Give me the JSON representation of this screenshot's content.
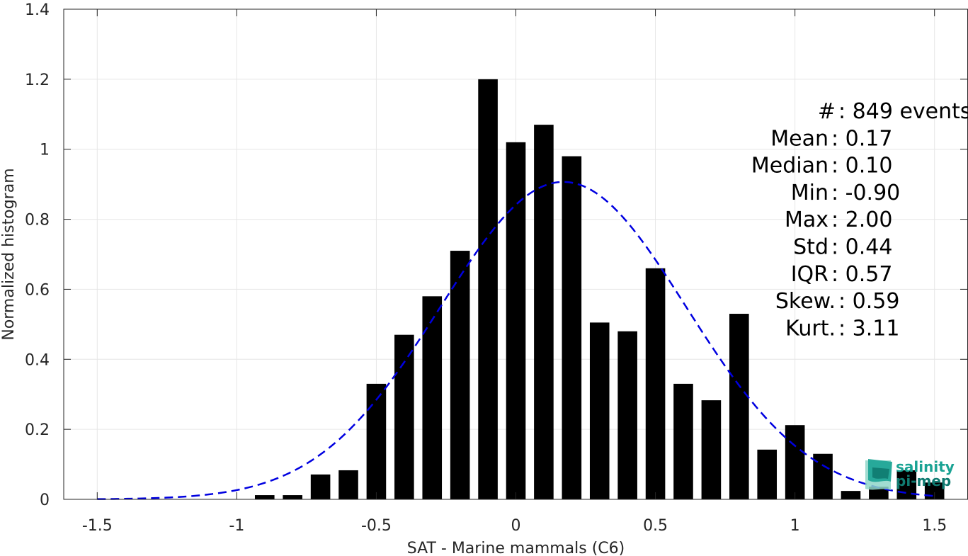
{
  "chart_data": {
    "type": "bar",
    "xlabel": "SAT - Marine mammals (C6)",
    "ylabel": "Normalized histogram",
    "xlim": [
      -1.62,
      1.62
    ],
    "ylim": [
      0,
      1.4
    ],
    "xticks": [
      -1.5,
      -1,
      -0.5,
      0,
      0.5,
      1,
      1.5
    ],
    "xtick_labels": [
      "-1.5",
      "-1",
      "-0.5",
      "0",
      "0.5",
      "1",
      "1.5"
    ],
    "yticks": [
      0,
      0.2,
      0.4,
      0.6,
      0.8,
      1,
      1.2,
      1.4
    ],
    "ytick_labels": [
      "0",
      "0.2",
      "0.4",
      "0.6",
      "0.8",
      "1",
      "1.2",
      "1.4"
    ],
    "grid": true,
    "bin_width": 0.1,
    "bar_width": 0.07,
    "bar_color": "#000000",
    "x": [
      -0.9,
      -0.8,
      -0.7,
      -0.6,
      -0.5,
      -0.4,
      -0.3,
      -0.2,
      -0.1,
      0.0,
      0.1,
      0.2,
      0.3,
      0.4,
      0.5,
      0.6,
      0.7,
      0.8,
      0.9,
      1.0,
      1.1,
      1.2,
      1.3,
      1.4,
      1.5
    ],
    "values": [
      0.012,
      0.012,
      0.071,
      0.083,
      0.33,
      0.47,
      0.58,
      0.71,
      1.2,
      1.02,
      1.07,
      0.98,
      0.505,
      0.48,
      0.66,
      0.33,
      0.283,
      0.53,
      0.142,
      0.212,
      0.13,
      0.024,
      0.036,
      0.083,
      0.048
    ],
    "fit_curve": {
      "type": "gaussian",
      "mean": 0.17,
      "std": 0.44,
      "color": "#0000e0",
      "style": "dashed",
      "x_range": [
        -1.5,
        1.5
      ]
    },
    "stats": [
      {
        "label": "#",
        "sep": " : ",
        "value": "849 events"
      },
      {
        "label": "Mean",
        "sep": " : ",
        "value": "0.17"
      },
      {
        "label": "Median",
        "sep": " : ",
        "value": "0.10"
      },
      {
        "label": "Min",
        "sep": " : ",
        "value": "-0.90"
      },
      {
        "label": "Max",
        "sep": " : ",
        "value": "2.00"
      },
      {
        "label": "Std",
        "sep": " : ",
        "value": "0.44"
      },
      {
        "label": "IQR",
        "sep": " : ",
        "value": "0.57"
      },
      {
        "label": "Skew.",
        "sep": " : ",
        "value": "0.59"
      },
      {
        "label": "Kurt.",
        "sep": " : ",
        "value": "3.11"
      }
    ]
  },
  "logo": {
    "line1": "salinity",
    "line2": "pi-mep",
    "colors": [
      "#1aa394",
      "#0f7a70",
      "#8fd6c9"
    ]
  }
}
